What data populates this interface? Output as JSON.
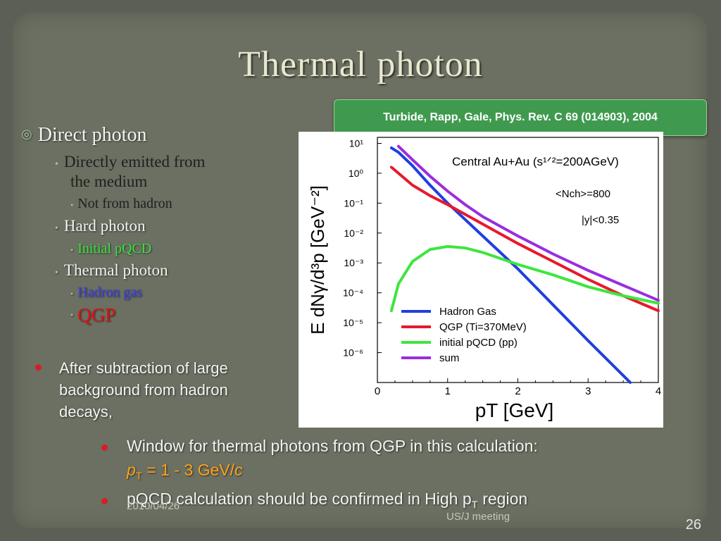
{
  "slide": {
    "title": "Thermal photon",
    "citation": "Turbide, Rapp, Gale, Phys. Rev. C 69 (014903), 2004",
    "outline": {
      "l1": "Direct photon",
      "a": "Directly emitted from",
      "a2": "the medium",
      "a_sub": "Not from hadron",
      "b": "Hard photon",
      "b_sub": "Initial pQCD",
      "c": "Thermal photon",
      "c_sub1": "Hadron gas",
      "c_sub2": "QGP"
    },
    "note": [
      "After subtraction of large",
      "background from hadron",
      "decays,"
    ],
    "bottom1_main": "Window for thermal photons from QGP in this calculation:",
    "bottom1_formula": "p",
    "bottom1_sub": "T",
    "bottom1_rest": " = 1 - 3 GeV/",
    "bottom1_c": "c",
    "bottom2_a": "pQCD calculation should be confirmed in High p",
    "bottom2_sub": "T",
    "bottom2_b": " region",
    "footer_date": "2010/04/26",
    "footer_meeting": "US/J meeting",
    "page_number": "26"
  },
  "chart_data": {
    "type": "line",
    "ylabel": "E dNγ/d³p [GeV⁻²]",
    "xlabel": "pT [GeV]",
    "x_ticks": [
      "0",
      "1",
      "2",
      "3",
      "4"
    ],
    "y_ticks": [
      "10¹",
      "10⁰",
      "10⁻¹",
      "10⁻²",
      "10⁻³",
      "10⁻⁴",
      "10⁻⁵",
      "10⁻⁶"
    ],
    "xlim": [
      0,
      4
    ],
    "ylim_log10": [
      -7,
      1.2
    ],
    "log_y": true,
    "annotations": [
      "Central Au+Au (s¹ᐟ²=200AGeV)",
      "<Nch>=800",
      "|y|<0.35"
    ],
    "series": [
      {
        "name": "Hadron Gas",
        "color": "#1f3fe0",
        "x": [
          0.2,
          0.3,
          0.5,
          0.75,
          1.0,
          1.25,
          1.5,
          2.0,
          2.5,
          3.0,
          3.6
        ],
        "log10y": [
          0.85,
          0.7,
          0.25,
          -0.4,
          -1.0,
          -1.55,
          -2.1,
          -3.2,
          -4.4,
          -5.6,
          -7.0
        ]
      },
      {
        "name": "QGP (Ti=370MeV)",
        "color": "#e8192c",
        "x": [
          0.2,
          0.3,
          0.5,
          0.75,
          1.0,
          1.5,
          2.0,
          2.5,
          3.0,
          3.5,
          4.0
        ],
        "log10y": [
          0.2,
          0.0,
          -0.4,
          -0.75,
          -1.05,
          -1.7,
          -2.35,
          -2.95,
          -3.55,
          -4.1,
          -4.6
        ]
      },
      {
        "name": "initial pQCD (pp)",
        "color": "#3de63d",
        "x": [
          0.2,
          0.3,
          0.5,
          0.75,
          1.0,
          1.25,
          1.5,
          2.0,
          2.5,
          3.0,
          3.5,
          4.0
        ],
        "log10y": [
          -4.6,
          -3.7,
          -2.95,
          -2.55,
          -2.45,
          -2.5,
          -2.65,
          -3.05,
          -3.4,
          -3.8,
          -4.1,
          -4.35
        ]
      },
      {
        "name": "sum",
        "color": "#9a2de0",
        "x": [
          0.3,
          0.5,
          0.75,
          1.0,
          1.25,
          1.5,
          2.0,
          2.5,
          3.0,
          3.5,
          4.0
        ],
        "log10y": [
          0.9,
          0.45,
          -0.1,
          -0.6,
          -1.05,
          -1.45,
          -2.1,
          -2.7,
          -3.25,
          -3.75,
          -4.25
        ]
      }
    ],
    "legend": "lower-left"
  }
}
